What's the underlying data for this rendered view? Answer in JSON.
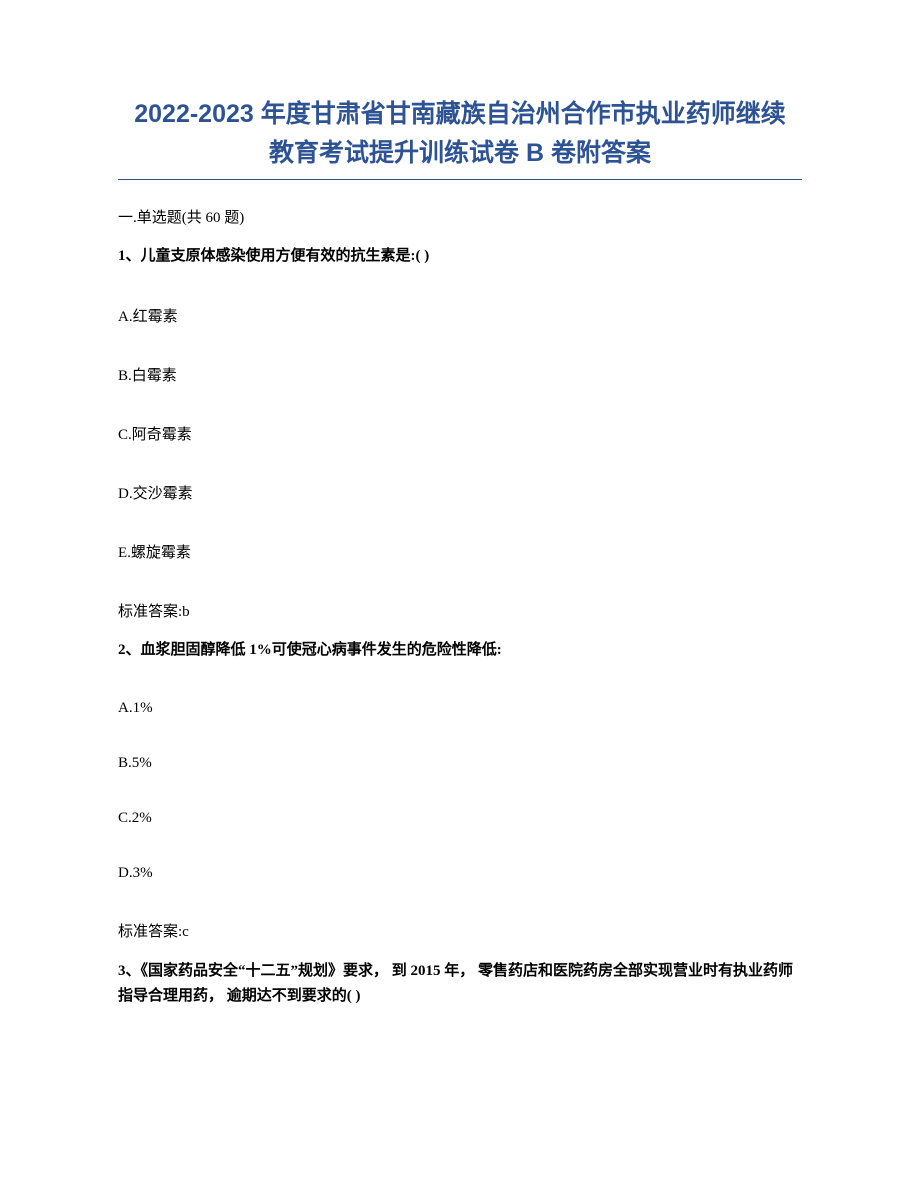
{
  "title_line1": "2022-2023 年度甘肃省甘南藏族自治州合作市执业药师继续",
  "title_line2": "教育考试提升训练试卷 B 卷附答案",
  "section_header": "一.单选题(共 60 题)",
  "q1": {
    "stem": "1、儿童支原体感染使用方便有效的抗生素是:( )",
    "A": "A.红霉素",
    "B": "B.白霉素",
    "C": "C.阿奇霉素",
    "D": "D.交沙霉素",
    "E": "E.螺旋霉素",
    "answer": "标准答案:b"
  },
  "q2": {
    "stem": "2、血浆胆固醇降低 1%可使冠心病事件发生的危险性降低:",
    "A": "A.1%",
    "B": "B.5%",
    "C": "C.2%",
    "D": "D.3%",
    "answer": "标准答案:c"
  },
  "q3": {
    "stem": "3、《国家药品安全“十二五”规划》要求， 到 2015 年， 零售药店和医院药房全部实现营业时有执业药师指导合理用药， 逾期达不到要求的( )"
  }
}
